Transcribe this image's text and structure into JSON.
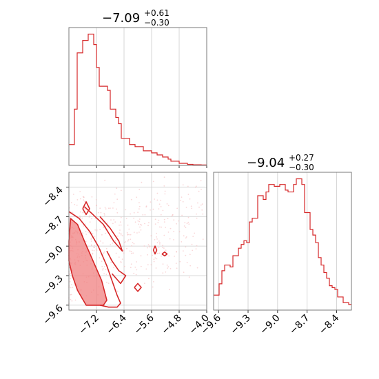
{
  "chart_data": {
    "type": "corner",
    "panels": [
      {
        "id": "hist_param1",
        "type": "histogram",
        "title": {
          "main": "−7.09",
          "sup": "+0.61",
          "sub": "−0.30"
        },
        "x_range": [
          -8.0,
          -4.0
        ],
        "x_ticks": [
          -7.2,
          -6.4,
          -5.6,
          -4.8,
          -4.0
        ],
        "grid": true,
        "bin_edges_start": -8.0,
        "bin_width": 0.08,
        "counts": [
          10,
          10,
          27,
          54,
          54,
          60,
          60,
          63,
          63,
          58,
          47,
          38,
          38,
          38,
          36,
          27,
          27,
          23,
          20,
          13,
          13,
          13,
          10,
          10,
          9,
          9,
          9,
          7,
          7,
          7,
          6,
          6,
          5,
          5,
          4,
          4,
          3,
          2,
          2,
          2,
          1,
          1,
          1,
          0.5,
          0.5,
          0.3,
          0.3,
          0.3,
          0.2,
          0.2
        ]
      },
      {
        "id": "hist_param2",
        "type": "histogram",
        "title": {
          "main": "−9.04",
          "sup": "+0.27",
          "sub": "−0.30"
        },
        "x_range": [
          -9.65,
          -8.25
        ],
        "x_ticks": [
          -9.6,
          -9.3,
          -9.0,
          -8.7,
          -8.4
        ],
        "grid": true,
        "bin_edges_start": -9.65,
        "bin_width": 0.028,
        "counts": [
          8,
          8,
          14,
          21,
          24,
          24,
          23,
          29,
          29,
          33,
          35,
          37,
          36,
          47,
          49,
          49,
          61,
          61,
          59,
          63,
          67,
          67,
          66,
          66,
          67,
          67,
          64,
          63,
          63,
          67,
          70,
          70,
          67,
          52,
          52,
          43,
          40,
          36,
          28,
          24,
          20,
          17,
          13,
          12,
          11,
          7,
          7,
          4,
          4,
          3
        ]
      },
      {
        "id": "joint",
        "type": "scatter_contour",
        "x_range": [
          -8.0,
          -4.0
        ],
        "y_range": [
          -9.65,
          -8.25
        ],
        "x_ticks": [
          -7.2,
          -6.4,
          -5.6,
          -4.8,
          -4.0
        ],
        "y_ticks": [
          -8.4,
          -8.7,
          -9.0,
          -9.3,
          -9.6
        ],
        "grid": true,
        "contour_filled": [
          [
            -8.0,
            -8.95
          ],
          [
            -8.0,
            -9.15
          ],
          [
            -7.9,
            -9.3
          ],
          [
            -7.75,
            -9.45
          ],
          [
            -7.5,
            -9.6
          ],
          [
            -7.25,
            -9.6
          ],
          [
            -7.0,
            -9.6
          ],
          [
            -6.9,
            -9.55
          ],
          [
            -7.05,
            -9.35
          ],
          [
            -7.3,
            -9.15
          ],
          [
            -7.55,
            -8.95
          ],
          [
            -7.75,
            -8.78
          ],
          [
            -7.95,
            -8.72
          ]
        ],
        "contour_lines": [
          [
            [
              -8.0,
              -8.65
            ],
            [
              -7.7,
              -8.72
            ],
            [
              -7.4,
              -8.85
            ],
            [
              -7.15,
              -9.0
            ],
            [
              -6.9,
              -9.2
            ],
            [
              -6.75,
              -9.35
            ],
            [
              -6.6,
              -9.5
            ],
            [
              -6.5,
              -9.58
            ],
            [
              -6.6,
              -9.62
            ],
            [
              -6.85,
              -9.62
            ],
            [
              -7.1,
              -9.6
            ]
          ],
          [
            [
              -7.55,
              -8.6
            ],
            [
              -7.3,
              -8.68
            ],
            [
              -7.0,
              -8.78
            ],
            [
              -6.7,
              -8.95
            ],
            [
              -6.45,
              -9.05
            ],
            [
              -6.55,
              -8.95
            ],
            [
              -6.8,
              -8.82
            ],
            [
              -7.1,
              -8.7
            ]
          ],
          [
            [
              -6.9,
              -9.05
            ],
            [
              -6.75,
              -9.15
            ],
            [
              -6.55,
              -9.25
            ],
            [
              -6.35,
              -9.3
            ],
            [
              -6.5,
              -9.38
            ],
            [
              -6.75,
              -9.28
            ]
          ],
          [
            [
              -7.6,
              -8.62
            ],
            [
              -7.5,
              -8.55
            ],
            [
              -7.4,
              -8.62
            ],
            [
              -7.5,
              -8.68
            ],
            [
              -7.6,
              -8.62
            ]
          ],
          [
            [
              -5.55,
              -9.04
            ],
            [
              -5.5,
              -9.0
            ],
            [
              -5.45,
              -9.04
            ],
            [
              -5.5,
              -9.08
            ],
            [
              -5.55,
              -9.04
            ]
          ],
          [
            [
              -5.3,
              -9.08
            ],
            [
              -5.22,
              -9.06
            ],
            [
              -5.15,
              -9.08
            ],
            [
              -5.22,
              -9.1
            ],
            [
              -5.3,
              -9.08
            ]
          ],
          [
            [
              -6.1,
              -9.42
            ],
            [
              -6.0,
              -9.38
            ],
            [
              -5.9,
              -9.42
            ],
            [
              -6.0,
              -9.46
            ],
            [
              -6.1,
              -9.42
            ]
          ]
        ],
        "colors": {
          "line": "#d62728",
          "fill": "#f08080",
          "points": "#f4b6b8"
        }
      }
    ]
  }
}
